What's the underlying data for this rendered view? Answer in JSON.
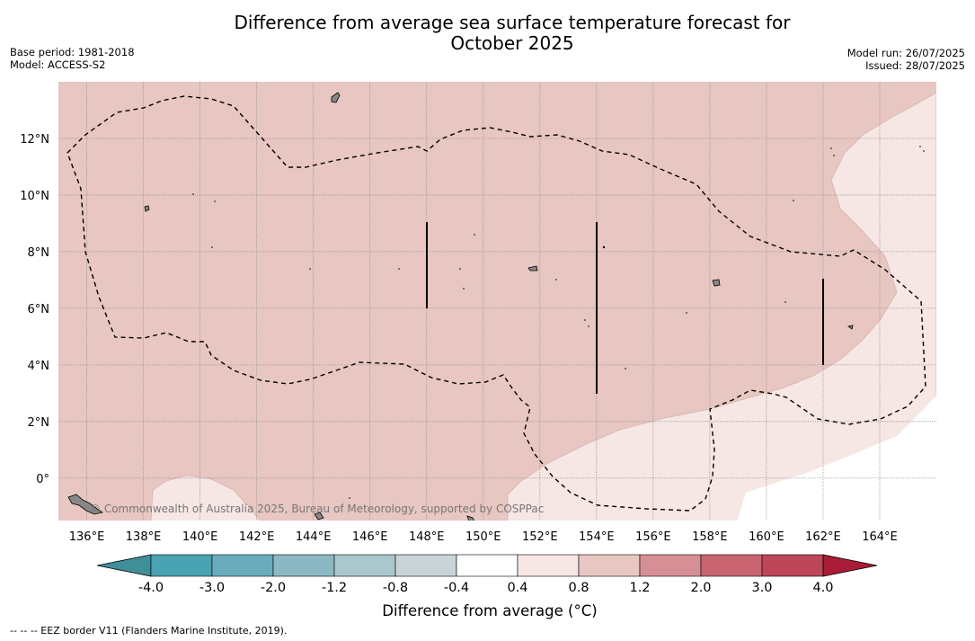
{
  "title_line1": "Difference from average sea surface temperature forecast for",
  "title_line2": "October 2025",
  "meta_left": {
    "base_period": "Base period: 1981-2018",
    "model": "Model: ACCESS-S2"
  },
  "meta_right": {
    "model_run": "Model run: 26/07/2025",
    "issued": "Issued: 28/07/2025"
  },
  "lat_labels": [
    "12°N",
    "10°N",
    "8°N",
    "6°N",
    "4°N",
    "2°N",
    "0°"
  ],
  "lat_values": [
    12,
    10,
    8,
    6,
    4,
    2,
    0
  ],
  "lon_labels": [
    "136°E",
    "138°E",
    "140°E",
    "142°E",
    "144°E",
    "146°E",
    "148°E",
    "150°E",
    "152°E",
    "154°E",
    "156°E",
    "158°E",
    "160°E",
    "162°E",
    "164°E"
  ],
  "lon_values": [
    136,
    138,
    140,
    142,
    144,
    146,
    148,
    150,
    152,
    154,
    156,
    158,
    160,
    162,
    164
  ],
  "map_extent": {
    "lon": [
      135,
      166
    ],
    "lat": [
      -1.5,
      14
    ]
  },
  "credit": "© Commonwealth of Australia 2025, Bureau of Meteorology, supported by COSPPac",
  "colorbar": {
    "tick_labels": [
      "-4.0",
      "-3.0",
      "-2.0",
      "-1.2",
      "-0.8",
      "-0.4",
      "0.4",
      "0.8",
      "1.2",
      "2.0",
      "3.0",
      "4.0"
    ],
    "colors": [
      "#3f8f99",
      "#4aa3b2",
      "#6aacbc",
      "#8bb8c3",
      "#a9c7cc",
      "#c9d4d6",
      "#ffffff",
      "#f6e6e4",
      "#e8c6c1",
      "#d68f95",
      "#c96570",
      "#bd4658",
      "#a81c36"
    ],
    "label": "Difference from average (°C)"
  },
  "legend_footer": "--  --  -- EEZ border V11 (Flanders Marine Institute, 2019).",
  "colors": {
    "anomaly_0_8_to_1_2": "#e8c6c1",
    "anomaly_0_4_to_0_8": "#f6e6e4",
    "anomaly_neg0_4_to_0_4": "#ffffff",
    "land": "#888888"
  }
}
